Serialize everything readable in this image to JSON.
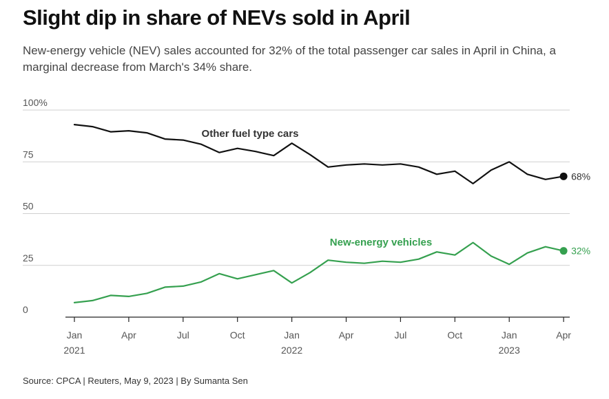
{
  "title": "Slight dip in share of NEVs sold in April",
  "subtitle": "New-energy vehicle (NEV) sales accounted for 32% of the total passenger car sales in April in China, a marginal decrease from March's 34% share.",
  "source": "Source: CPCA | Reuters, May 9, 2023 | By Sumanta Sen",
  "colors": {
    "other": "#111111",
    "nev": "#35a04f",
    "grid": "#cfcfcf"
  },
  "chart_data": {
    "type": "line",
    "title": "Slight dip in share of NEVs sold in April",
    "xlabel": "",
    "ylabel": "",
    "ylim": [
      0,
      100
    ],
    "y_ticks": [
      {
        "value": 0,
        "label": "0"
      },
      {
        "value": 25,
        "label": "25"
      },
      {
        "value": 50,
        "label": "50"
      },
      {
        "value": 75,
        "label": "75"
      },
      {
        "value": 100,
        "label": "100%"
      }
    ],
    "x_ticks": [
      {
        "index": 0,
        "month": "Jan",
        "year": "2021"
      },
      {
        "index": 3,
        "month": "Apr",
        "year": ""
      },
      {
        "index": 6,
        "month": "Jul",
        "year": ""
      },
      {
        "index": 9,
        "month": "Oct",
        "year": ""
      },
      {
        "index": 12,
        "month": "Jan",
        "year": "2022"
      },
      {
        "index": 15,
        "month": "Apr",
        "year": ""
      },
      {
        "index": 18,
        "month": "Jul",
        "year": ""
      },
      {
        "index": 21,
        "month": "Oct",
        "year": ""
      },
      {
        "index": 24,
        "month": "Jan",
        "year": "2023"
      },
      {
        "index": 27,
        "month": "Apr",
        "year": ""
      }
    ],
    "x": [
      "Jan 2021",
      "Feb 2021",
      "Mar 2021",
      "Apr 2021",
      "May 2021",
      "Jun 2021",
      "Jul 2021",
      "Aug 2021",
      "Sep 2021",
      "Oct 2021",
      "Nov 2021",
      "Dec 2021",
      "Jan 2022",
      "Feb 2022",
      "Mar 2022",
      "Apr 2022",
      "May 2022",
      "Jun 2022",
      "Jul 2022",
      "Aug 2022",
      "Sep 2022",
      "Oct 2022",
      "Nov 2022",
      "Dec 2022",
      "Jan 2023",
      "Feb 2023",
      "Mar 2023",
      "Apr 2023"
    ],
    "series": [
      {
        "name": "Other fuel type cars",
        "key": "other",
        "end_label": "68%",
        "values": [
          93,
          92,
          89.5,
          90,
          89,
          86,
          85.5,
          83.5,
          79.5,
          81.5,
          80,
          78,
          84,
          78.5,
          72.5,
          73.5,
          74,
          73.5,
          74,
          72.5,
          69,
          70.5,
          64.5,
          71,
          75,
          69,
          66.5,
          68
        ]
      },
      {
        "name": "New-energy vehicles",
        "key": "nev",
        "end_label": "32%",
        "values": [
          7,
          8,
          10.5,
          10,
          11.5,
          14.5,
          15,
          17,
          21,
          18.5,
          20.5,
          22.5,
          16.5,
          21.5,
          27.5,
          26.5,
          26,
          27,
          26.5,
          28,
          31.5,
          30,
          36,
          29.5,
          25.5,
          31,
          34,
          32
        ]
      }
    ]
  }
}
